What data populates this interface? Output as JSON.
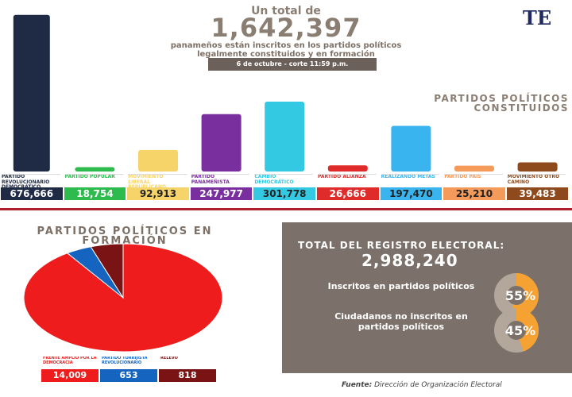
{
  "header": {
    "intro": "Un total de",
    "total": "1,642,397",
    "subtitle": "panameños están inscritos en los partidos políticos legalmente constituidos y en formación",
    "date": "6 de octubre - corte 11:59 p.m.",
    "logo": "TE"
  },
  "chart_data": [
    {
      "type": "bar",
      "title": "PARTIDOS POLÍTICOS CONSTITUIDOS",
      "categories": [
        "PARTIDO REVOLUCIONARIO DEMOCRÁTICO",
        "PARTIDO POPULAR",
        "MOVIMIENTO LIBERAL REPUBLICANO NACIONALISTA",
        "PARTIDO PANAMEÑISTA",
        "CAMBIO DEMOCRÁTICO",
        "PARTIDO ALIANZA",
        "REALIZANDO METAS",
        "PARTIDO PAÍS",
        "MOVIMIENTO OTRO CAMINO"
      ],
      "values": [
        676666,
        18754,
        92913,
        247977,
        301778,
        26666,
        197470,
        25210,
        39483
      ],
      "value_labels": [
        "676,666",
        "18,754",
        "92,913",
        "247,977",
        "301,778",
        "26,666",
        "197,470",
        "25,210",
        "39,483"
      ],
      "colors": [
        "#1f2b45",
        "#2dbb4e",
        "#f6d46a",
        "#7a2f9e",
        "#33c9e3",
        "#e02b2b",
        "#3ab4ee",
        "#f49a5a",
        "#8e4a1c"
      ],
      "ylim": [
        0,
        700000
      ]
    },
    {
      "type": "pie",
      "title": "PARTIDOS POLÍTICOS EN FORMACIÓN",
      "categories": [
        "FRENTE AMPLIO POR LA DEMOCRACIA",
        "PARTIDO TORRIJISTA REVOLUCIONARIO",
        "RELEVO"
      ],
      "values": [
        14009,
        653,
        818
      ],
      "value_labels": [
        "14,009",
        "653",
        "818"
      ],
      "colors": [
        "#ee1c1c",
        "#1565c0",
        "#7a1414"
      ]
    }
  ],
  "summary": {
    "title": "TOTAL DEL REGISTRO ELECTORAL:",
    "total": "2,988,240",
    "items": [
      {
        "label": "Inscritos en partidos políticos",
        "value": 55,
        "value_label": "55%"
      },
      {
        "label": "Ciudadanos no inscritos en partidos políticos",
        "value": 45,
        "value_label": "45%"
      }
    ]
  },
  "source": {
    "label": "Fuente:",
    "text": "Dirección de Organización Electoral"
  }
}
